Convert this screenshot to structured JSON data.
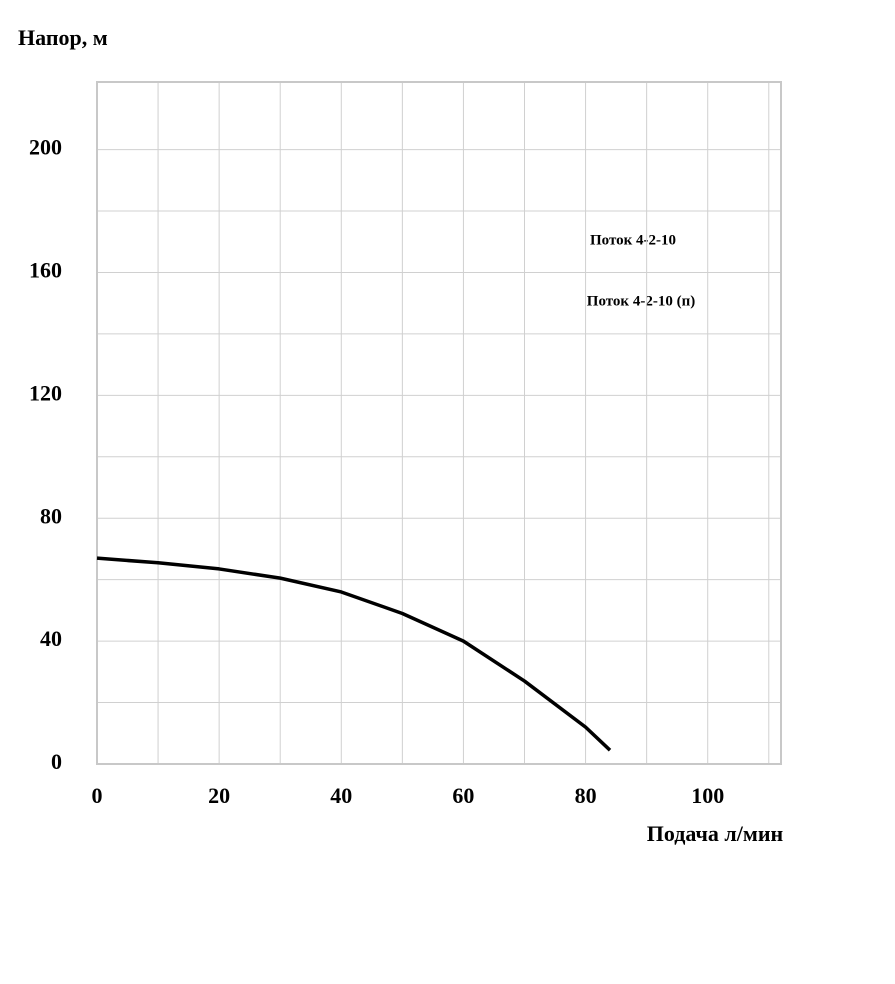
{
  "chart_data": {
    "type": "line",
    "y_label": "Напор, м",
    "x_label": "Подача л/мин",
    "x": [
      0,
      10,
      20,
      30,
      40,
      50,
      60,
      70,
      80,
      84
    ],
    "series": [
      {
        "name": "Поток 4-2-10",
        "color": "#000000",
        "values": [
          67,
          65.5,
          63.5,
          60.5,
          56,
          49,
          40,
          27,
          12,
          4.5
        ]
      }
    ],
    "annotations": [
      "Поток 4-2-10 (п)"
    ],
    "xlim": [
      0,
      112
    ],
    "xticks": [
      0,
      20,
      40,
      60,
      80,
      100
    ],
    "x_minor_ticks": [
      10,
      30,
      50,
      70,
      90,
      110
    ],
    "ylim": [
      0,
      222
    ],
    "yticks": [
      0,
      40,
      80,
      120,
      160,
      200
    ],
    "y_minor_ticks": [
      20,
      60,
      100,
      140,
      180
    ],
    "grid": true
  }
}
